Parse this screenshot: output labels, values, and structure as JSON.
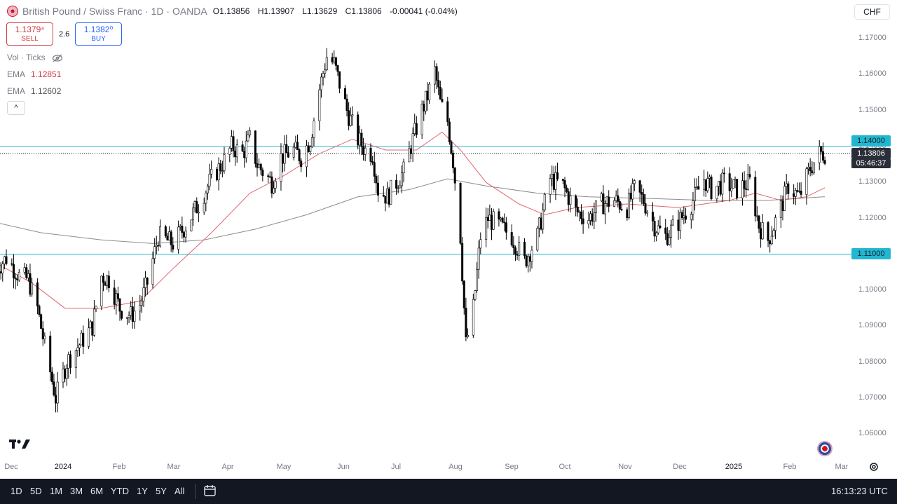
{
  "header": {
    "symbol": "British Pound / Swiss Franc · 1D · OANDA",
    "o_label": "O",
    "o": "1.13856",
    "h_label": "H",
    "h": "1.13907",
    "l_label": "L",
    "l": "1.13629",
    "c_label": "C",
    "c": "1.13806",
    "change": "-0.00041 (-0.04%)"
  },
  "trade": {
    "sell_price": "1.1379⁴",
    "sell_label": "SELL",
    "spread": "2.6",
    "buy_price": "1.1382⁰",
    "buy_label": "BUY"
  },
  "indicators": {
    "vol_label": "Vol · Ticks",
    "ema1_label": "EMA",
    "ema1_value": "1.12851",
    "ema2_label": "EMA",
    "ema2_value": "1.12602",
    "collapse_icon": "^"
  },
  "currency_button": "CHF",
  "price_tags": {
    "level_high": "1.14000",
    "last": "1.13806",
    "countdown": "05:46:37",
    "level_low": "1.11000"
  },
  "y_ticks": [
    "1.17000",
    "1.16000",
    "1.15000",
    "1.14000",
    "1.13000",
    "1.12000",
    "1.11000",
    "1.10000",
    "1.09000",
    "1.08000",
    "1.07000",
    "1.06000"
  ],
  "x_ticks": [
    {
      "label": "Dec",
      "bold": false
    },
    {
      "label": "2024",
      "bold": true
    },
    {
      "label": "Feb",
      "bold": false
    },
    {
      "label": "Mar",
      "bold": false
    },
    {
      "label": "Apr",
      "bold": false
    },
    {
      "label": "May",
      "bold": false
    },
    {
      "label": "Jun",
      "bold": false
    },
    {
      "label": "Jul",
      "bold": false
    },
    {
      "label": "Aug",
      "bold": false
    },
    {
      "label": "Sep",
      "bold": false
    },
    {
      "label": "Oct",
      "bold": false
    },
    {
      "label": "Nov",
      "bold": false
    },
    {
      "label": "Dec",
      "bold": false
    },
    {
      "label": "2025",
      "bold": true
    },
    {
      "label": "Feb",
      "bold": false
    },
    {
      "label": "Mar",
      "bold": false
    }
  ],
  "bottom_bar": {
    "ranges": [
      "1D",
      "5D",
      "1M",
      "3M",
      "6M",
      "YTD",
      "1Y",
      "5Y",
      "All"
    ],
    "calendar_icon": "calendar-icon",
    "clock": "16:13:23 UTC"
  },
  "colors": {
    "candle": "#000000",
    "level_line": "#22b7d1",
    "ema_fast": "#e0656d",
    "ema_slow": "#8c8c8c",
    "sell": "#d13a45",
    "buy": "#2962ff"
  },
  "chart_data": {
    "type": "candlestick",
    "title": "British Pound / Swiss Franc · 1D · OANDA",
    "ylim": [
      1.055,
      1.175
    ],
    "horizontal_levels": [
      1.14,
      1.11
    ],
    "last_price": 1.13806,
    "anchors": [
      [
        "2023-11-24",
        1.105
      ],
      [
        "2023-12-01",
        1.109
      ],
      [
        "2023-12-08",
        1.104
      ],
      [
        "2023-12-13",
        1.103
      ],
      [
        "2023-12-18",
        1.095
      ],
      [
        "2023-12-21",
        1.087
      ],
      [
        "2023-12-28",
        1.07
      ],
      [
        "2024-01-03",
        1.08
      ],
      [
        "2024-01-10",
        1.085
      ],
      [
        "2024-01-17",
        1.09
      ],
      [
        "2024-01-22",
        1.104
      ],
      [
        "2024-01-26",
        1.103
      ],
      [
        "2024-02-01",
        1.095
      ],
      [
        "2024-02-07",
        1.093
      ],
      [
        "2024-02-12",
        1.096
      ],
      [
        "2024-02-16",
        1.102
      ],
      [
        "2024-02-22",
        1.115
      ],
      [
        "2024-03-01",
        1.113
      ],
      [
        "2024-03-08",
        1.118
      ],
      [
        "2024-03-15",
        1.124
      ],
      [
        "2024-03-22",
        1.131
      ],
      [
        "2024-03-29",
        1.136
      ],
      [
        "2024-04-02",
        1.14
      ],
      [
        "2024-04-08",
        1.138
      ],
      [
        "2024-04-12",
        1.142
      ],
      [
        "2024-04-16",
        1.135
      ],
      [
        "2024-04-19",
        1.133
      ],
      [
        "2024-04-24",
        1.13
      ],
      [
        "2024-04-29",
        1.137
      ],
      [
        "2024-05-06",
        1.139
      ],
      [
        "2024-05-10",
        1.137
      ],
      [
        "2024-05-15",
        1.142
      ],
      [
        "2024-05-20",
        1.156
      ],
      [
        "2024-05-24",
        1.165
      ],
      [
        "2024-05-28",
        1.163
      ],
      [
        "2024-06-04",
        1.15
      ],
      [
        "2024-06-10",
        1.142
      ],
      [
        "2024-06-14",
        1.139
      ],
      [
        "2024-06-18",
        1.138
      ],
      [
        "2024-06-21",
        1.128
      ],
      [
        "2024-06-26",
        1.126
      ],
      [
        "2024-07-01",
        1.13
      ],
      [
        "2024-07-05",
        1.133
      ],
      [
        "2024-07-10",
        1.142
      ],
      [
        "2024-07-15",
        1.15
      ],
      [
        "2024-07-18",
        1.154
      ],
      [
        "2024-07-22",
        1.161
      ],
      [
        "2024-07-25",
        1.152
      ],
      [
        "2024-07-29",
        1.147
      ],
      [
        "2024-08-01",
        1.136
      ],
      [
        "2024-08-05",
        1.115
      ],
      [
        "2024-08-08",
        1.085
      ],
      [
        "2024-08-12",
        1.095
      ],
      [
        "2024-08-16",
        1.115
      ],
      [
        "2024-08-20",
        1.12
      ],
      [
        "2024-08-26",
        1.118
      ],
      [
        "2024-09-02",
        1.115
      ],
      [
        "2024-09-09",
        1.108
      ],
      [
        "2024-09-16",
        1.115
      ],
      [
        "2024-09-23",
        1.131
      ],
      [
        "2024-09-30",
        1.129
      ],
      [
        "2024-10-07",
        1.122
      ],
      [
        "2024-10-14",
        1.12
      ],
      [
        "2024-10-21",
        1.124
      ],
      [
        "2024-10-28",
        1.125
      ],
      [
        "2024-11-04",
        1.123
      ],
      [
        "2024-11-08",
        1.128
      ],
      [
        "2024-11-13",
        1.125
      ],
      [
        "2024-11-19",
        1.118
      ],
      [
        "2024-11-25",
        1.115
      ],
      [
        "2024-12-02",
        1.119
      ],
      [
        "2024-12-09",
        1.124
      ],
      [
        "2024-12-16",
        1.131
      ],
      [
        "2024-12-20",
        1.128
      ],
      [
        "2024-12-27",
        1.13
      ],
      [
        "2025-01-03",
        1.128
      ],
      [
        "2025-01-10",
        1.13
      ],
      [
        "2025-01-15",
        1.118
      ],
      [
        "2025-01-20",
        1.114
      ],
      [
        "2025-01-27",
        1.123
      ],
      [
        "2025-01-31",
        1.129
      ],
      [
        "2025-02-06",
        1.126
      ],
      [
        "2025-02-12",
        1.134
      ],
      [
        "2025-02-17",
        1.138
      ],
      [
        "2025-02-20",
        1.1381
      ]
    ],
    "ema_fast": [
      [
        "2023-11-24",
        1.108
      ],
      [
        "2023-12-15",
        1.102
      ],
      [
        "2024-01-02",
        1.095
      ],
      [
        "2024-01-22",
        1.095
      ],
      [
        "2024-02-12",
        1.097
      ],
      [
        "2024-03-01",
        1.106
      ],
      [
        "2024-03-22",
        1.116
      ],
      [
        "2024-04-12",
        1.127
      ],
      [
        "2024-05-01",
        1.132
      ],
      [
        "2024-05-20",
        1.138
      ],
      [
        "2024-06-07",
        1.142
      ],
      [
        "2024-06-25",
        1.139
      ],
      [
        "2024-07-12",
        1.139
      ],
      [
        "2024-07-26",
        1.144
      ],
      [
        "2024-08-05",
        1.139
      ],
      [
        "2024-08-19",
        1.13
      ],
      [
        "2024-09-06",
        1.124
      ],
      [
        "2024-09-20",
        1.121
      ],
      [
        "2024-10-07",
        1.123
      ],
      [
        "2024-11-04",
        1.124
      ],
      [
        "2024-12-02",
        1.123
      ],
      [
        "2024-12-30",
        1.125
      ],
      [
        "2025-01-13",
        1.127
      ],
      [
        "2025-01-27",
        1.125
      ],
      [
        "2025-02-10",
        1.126
      ],
      [
        "2025-02-20",
        1.12851
      ]
    ],
    "ema_slow": [
      [
        "2023-11-24",
        1.119
      ],
      [
        "2023-12-20",
        1.116
      ],
      [
        "2024-01-22",
        1.114
      ],
      [
        "2024-02-19",
        1.113
      ],
      [
        "2024-03-18",
        1.114
      ],
      [
        "2024-04-15",
        1.117
      ],
      [
        "2024-05-13",
        1.121
      ],
      [
        "2024-06-10",
        1.126
      ],
      [
        "2024-07-08",
        1.128
      ],
      [
        "2024-07-29",
        1.131
      ],
      [
        "2024-08-19",
        1.129
      ],
      [
        "2024-09-16",
        1.127
      ],
      [
        "2024-10-14",
        1.126
      ],
      [
        "2024-11-18",
        1.1255
      ],
      [
        "2024-12-16",
        1.125
      ],
      [
        "2025-01-20",
        1.125
      ],
      [
        "2025-02-20",
        1.12602
      ]
    ]
  }
}
